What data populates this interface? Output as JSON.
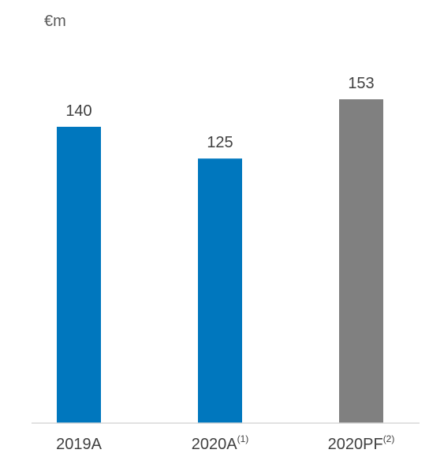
{
  "chart_data": {
    "type": "bar",
    "unit_label": "€m",
    "categories": [
      {
        "label": "2019A",
        "footnote": ""
      },
      {
        "label": "2020A",
        "footnote": "(1)"
      },
      {
        "label": "2020PF",
        "footnote": "(2)"
      }
    ],
    "values": [
      140,
      125,
      153
    ],
    "bar_colors": [
      "#0077BE",
      "#0077BE",
      "#808080"
    ],
    "ylim": [
      0,
      153
    ],
    "xlabel": "",
    "ylabel": "",
    "grid": false,
    "legend": "none"
  },
  "colors": {
    "text": "#404040",
    "axis_line": "#d9d9d9"
  }
}
